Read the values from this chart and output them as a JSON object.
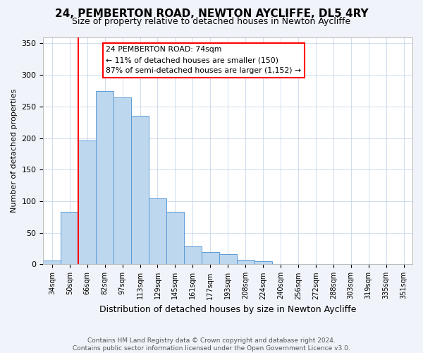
{
  "title": "24, PEMBERTON ROAD, NEWTON AYCLIFFE, DL5 4RY",
  "subtitle": "Size of property relative to detached houses in Newton Aycliffe",
  "xlabel": "Distribution of detached houses by size in Newton Aycliffe",
  "ylabel": "Number of detached properties",
  "footnote1": "Contains HM Land Registry data © Crown copyright and database right 2024.",
  "footnote2": "Contains public sector information licensed under the Open Government Licence v3.0.",
  "bar_labels": [
    "34sqm",
    "50sqm",
    "66sqm",
    "82sqm",
    "97sqm",
    "113sqm",
    "129sqm",
    "145sqm",
    "161sqm",
    "177sqm",
    "193sqm",
    "208sqm",
    "224sqm",
    "240sqm",
    "256sqm",
    "272sqm",
    "288sqm",
    "303sqm",
    "319sqm",
    "335sqm",
    "351sqm"
  ],
  "bar_heights": [
    6,
    83,
    196,
    274,
    264,
    235,
    104,
    83,
    28,
    20,
    16,
    7,
    5,
    1,
    1,
    1,
    0,
    0,
    0,
    0,
    1
  ],
  "bar_color": "#bdd7ee",
  "bar_edge_color": "#5b9bd5",
  "vline_color": "red",
  "ylim": [
    0,
    360
  ],
  "yticks": [
    0,
    50,
    100,
    150,
    200,
    250,
    300,
    350
  ],
  "annotation_title": "24 PEMBERTON ROAD: 74sqm",
  "annotation_line1": "← 11% of detached houses are smaller (150)",
  "annotation_line2": "87% of semi-detached houses are larger (1,152) →",
  "annotation_box_color": "white",
  "annotation_box_edge_color": "red",
  "background_color": "#f0f4fa",
  "plot_background_color": "white",
  "grid_color": "#c8d8ea",
  "title_fontsize": 11,
  "subtitle_fontsize": 9,
  "ylabel_fontsize": 8,
  "xlabel_fontsize": 9,
  "tick_fontsize": 7,
  "footnote_fontsize": 6.5
}
